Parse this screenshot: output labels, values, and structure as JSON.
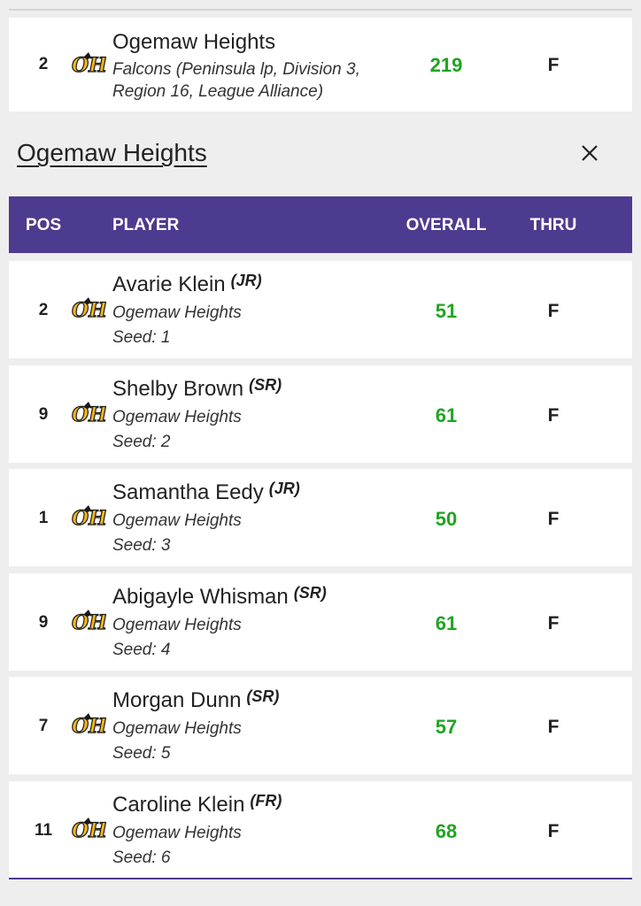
{
  "team_row": {
    "pos": "2",
    "name": "Ogemaw Heights",
    "detail_line1": "Falcons (Peninsula lp, Division 3,",
    "detail_line2": "Region 16, League Alliance)",
    "score": "219",
    "thru": "F"
  },
  "section": {
    "title": "Ogemaw Heights"
  },
  "table_header": {
    "pos": "POS",
    "player": "PLAYER",
    "overall": "OVERALL",
    "thru": "THRU"
  },
  "players": [
    {
      "pos": "2",
      "name": "Avarie Klein",
      "grade": "(JR)",
      "team": "Ogemaw Heights",
      "seed": "Seed: 1",
      "overall": "51",
      "thru": "F"
    },
    {
      "pos": "9",
      "name": "Shelby Brown",
      "grade": "(SR)",
      "team": "Ogemaw Heights",
      "seed": "Seed: 2",
      "overall": "61",
      "thru": "F"
    },
    {
      "pos": "1",
      "name": "Samantha Eedy",
      "grade": "(JR)",
      "team": "Ogemaw Heights",
      "seed": "Seed: 3",
      "overall": "50",
      "thru": "F"
    },
    {
      "pos": "9",
      "name": "Abigayle Whisman",
      "grade": "(SR)",
      "team": "Ogemaw Heights",
      "seed": "Seed: 4",
      "overall": "61",
      "thru": "F"
    },
    {
      "pos": "7",
      "name": "Morgan Dunn",
      "grade": "(SR)",
      "team": "Ogemaw Heights",
      "seed": "Seed: 5",
      "overall": "57",
      "thru": "F"
    },
    {
      "pos": "11",
      "name": "Caroline Klein",
      "grade": "(FR)",
      "team": "Ogemaw Heights",
      "seed": "Seed: 6",
      "overall": "68",
      "thru": "F"
    }
  ],
  "logo": {
    "icon": "ogemaw-heights-logo-icon",
    "text": "OH"
  },
  "colors": {
    "header": "#4d3b8f",
    "score": "#1fa51f",
    "logo_gold": "#f2b51d"
  }
}
